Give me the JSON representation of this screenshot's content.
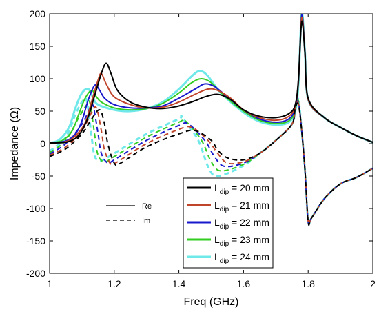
{
  "chart_data": {
    "type": "line",
    "xlabel": "Freq (GHz)",
    "ylabel": "Impedance (Ω)",
    "xlim": [
      1,
      2
    ],
    "ylim": [
      -200,
      200
    ],
    "xticks": [
      "1",
      "1.2",
      "1.4",
      "1.6",
      "1.8",
      "2"
    ],
    "yticks": [
      "200",
      "150",
      "100",
      "50",
      "0",
      "-50",
      "-100",
      "-150",
      "-200"
    ],
    "grid": false,
    "legend_position": "bottom-right",
    "style_legend": [
      {
        "label": "Re",
        "style": "solid"
      },
      {
        "label": "Im",
        "style": "dashed"
      }
    ],
    "series": [
      {
        "label_main": "L",
        "label_sub": "dip",
        "label_rest": " = 20 mm",
        "color": "#000000",
        "re": [
          [
            1.0,
            1
          ],
          [
            1.05,
            2
          ],
          [
            1.08,
            8
          ],
          [
            1.1,
            20
          ],
          [
            1.12,
            42
          ],
          [
            1.14,
            75
          ],
          [
            1.16,
            108
          ],
          [
            1.175,
            124
          ],
          [
            1.19,
            108
          ],
          [
            1.21,
            82
          ],
          [
            1.25,
            64
          ],
          [
            1.3,
            56
          ],
          [
            1.35,
            54
          ],
          [
            1.4,
            58
          ],
          [
            1.45,
            66
          ],
          [
            1.48,
            72
          ],
          [
            1.52,
            76
          ],
          [
            1.56,
            68
          ],
          [
            1.6,
            52
          ],
          [
            1.65,
            42
          ],
          [
            1.7,
            40
          ],
          [
            1.74,
            46
          ],
          [
            1.76,
            60
          ],
          [
            1.77,
            100
          ],
          [
            1.78,
            188
          ],
          [
            1.79,
            140
          ],
          [
            1.8,
            70
          ],
          [
            1.85,
            40
          ],
          [
            1.9,
            25
          ],
          [
            1.95,
            12
          ],
          [
            2.0,
            2
          ]
        ],
        "im": [
          [
            1.0,
            -20
          ],
          [
            1.05,
            -8
          ],
          [
            1.1,
            15
          ],
          [
            1.13,
            38
          ],
          [
            1.155,
            52
          ],
          [
            1.17,
            30
          ],
          [
            1.18,
            0
          ],
          [
            1.2,
            -30
          ],
          [
            1.22,
            -30
          ],
          [
            1.3,
            -5
          ],
          [
            1.4,
            15
          ],
          [
            1.45,
            20
          ],
          [
            1.5,
            5
          ],
          [
            1.52,
            -10
          ],
          [
            1.55,
            -22
          ],
          [
            1.6,
            -25
          ],
          [
            1.65,
            -15
          ],
          [
            1.7,
            5
          ],
          [
            1.75,
            30
          ],
          [
            1.76,
            55
          ],
          [
            1.77,
            60
          ],
          [
            1.78,
            20
          ],
          [
            1.79,
            -40
          ],
          [
            1.8,
            -120
          ],
          [
            1.81,
            -115
          ],
          [
            1.85,
            -85
          ],
          [
            1.9,
            -62
          ],
          [
            1.95,
            -52
          ],
          [
            2.0,
            -38
          ]
        ]
      },
      {
        "label_main": "L",
        "label_sub": "dip",
        "label_rest": " = 21 mm",
        "color": "#c0442a",
        "re": [
          [
            1.0,
            1
          ],
          [
            1.05,
            3
          ],
          [
            1.08,
            12
          ],
          [
            1.11,
            32
          ],
          [
            1.13,
            65
          ],
          [
            1.15,
            98
          ],
          [
            1.16,
            108
          ],
          [
            1.175,
            92
          ],
          [
            1.2,
            72
          ],
          [
            1.25,
            60
          ],
          [
            1.3,
            55
          ],
          [
            1.35,
            56
          ],
          [
            1.4,
            64
          ],
          [
            1.45,
            76
          ],
          [
            1.49,
            84
          ],
          [
            1.52,
            82
          ],
          [
            1.56,
            70
          ],
          [
            1.6,
            52
          ],
          [
            1.65,
            40
          ],
          [
            1.7,
            36
          ],
          [
            1.74,
            42
          ],
          [
            1.76,
            58
          ],
          [
            1.77,
            98
          ],
          [
            1.78,
            194
          ],
          [
            1.79,
            140
          ],
          [
            1.8,
            68
          ],
          [
            1.85,
            40
          ],
          [
            1.9,
            25
          ],
          [
            1.95,
            12
          ],
          [
            2.0,
            2
          ]
        ],
        "im": [
          [
            1.0,
            -18
          ],
          [
            1.05,
            -5
          ],
          [
            1.1,
            20
          ],
          [
            1.13,
            48
          ],
          [
            1.145,
            55
          ],
          [
            1.16,
            20
          ],
          [
            1.17,
            -10
          ],
          [
            1.19,
            -32
          ],
          [
            1.21,
            -28
          ],
          [
            1.3,
            0
          ],
          [
            1.4,
            22
          ],
          [
            1.44,
            25
          ],
          [
            1.49,
            5
          ],
          [
            1.52,
            -15
          ],
          [
            1.55,
            -30
          ],
          [
            1.6,
            -28
          ],
          [
            1.65,
            -15
          ],
          [
            1.7,
            5
          ],
          [
            1.75,
            30
          ],
          [
            1.76,
            55
          ],
          [
            1.77,
            62
          ],
          [
            1.78,
            20
          ],
          [
            1.79,
            -40
          ],
          [
            1.8,
            -120
          ],
          [
            1.81,
            -115
          ],
          [
            1.85,
            -85
          ],
          [
            1.9,
            -62
          ],
          [
            1.95,
            -52
          ],
          [
            2.0,
            -38
          ]
        ]
      },
      {
        "label_main": "L",
        "label_sub": "dip",
        "label_rest": " = 22 mm",
        "color": "#1818cc",
        "re": [
          [
            1.0,
            1
          ],
          [
            1.05,
            4
          ],
          [
            1.08,
            15
          ],
          [
            1.1,
            35
          ],
          [
            1.12,
            68
          ],
          [
            1.14,
            90
          ],
          [
            1.155,
            82
          ],
          [
            1.17,
            70
          ],
          [
            1.2,
            60
          ],
          [
            1.25,
            55
          ],
          [
            1.3,
            55
          ],
          [
            1.35,
            58
          ],
          [
            1.4,
            70
          ],
          [
            1.45,
            84
          ],
          [
            1.48,
            92
          ],
          [
            1.51,
            88
          ],
          [
            1.55,
            72
          ],
          [
            1.6,
            52
          ],
          [
            1.65,
            38
          ],
          [
            1.7,
            33
          ],
          [
            1.74,
            38
          ],
          [
            1.76,
            55
          ],
          [
            1.77,
            96
          ],
          [
            1.78,
            198
          ],
          [
            1.79,
            142
          ],
          [
            1.8,
            68
          ],
          [
            1.85,
            40
          ],
          [
            1.9,
            25
          ],
          [
            1.95,
            12
          ],
          [
            2.0,
            2
          ]
        ],
        "im": [
          [
            1.0,
            -16
          ],
          [
            1.05,
            0
          ],
          [
            1.1,
            30
          ],
          [
            1.125,
            55
          ],
          [
            1.135,
            58
          ],
          [
            1.15,
            15
          ],
          [
            1.16,
            -15
          ],
          [
            1.18,
            -30
          ],
          [
            1.2,
            -25
          ],
          [
            1.3,
            5
          ],
          [
            1.4,
            28
          ],
          [
            1.43,
            30
          ],
          [
            1.48,
            5
          ],
          [
            1.51,
            -20
          ],
          [
            1.54,
            -35
          ],
          [
            1.6,
            -30
          ],
          [
            1.65,
            -15
          ],
          [
            1.7,
            5
          ],
          [
            1.75,
            30
          ],
          [
            1.76,
            55
          ],
          [
            1.77,
            64
          ],
          [
            1.78,
            20
          ],
          [
            1.79,
            -40
          ],
          [
            1.8,
            -120
          ],
          [
            1.81,
            -115
          ],
          [
            1.85,
            -85
          ],
          [
            1.9,
            -62
          ],
          [
            1.95,
            -52
          ],
          [
            2.0,
            -38
          ]
        ]
      },
      {
        "label_main": "L",
        "label_sub": "dip",
        "label_rest": " = 23 mm",
        "color": "#33cc22",
        "re": [
          [
            1.0,
            1
          ],
          [
            1.04,
            5
          ],
          [
            1.07,
            20
          ],
          [
            1.09,
            45
          ],
          [
            1.11,
            70
          ],
          [
            1.13,
            82
          ],
          [
            1.145,
            72
          ],
          [
            1.16,
            64
          ],
          [
            1.2,
            55
          ],
          [
            1.25,
            52
          ],
          [
            1.3,
            54
          ],
          [
            1.35,
            62
          ],
          [
            1.4,
            78
          ],
          [
            1.44,
            94
          ],
          [
            1.47,
            100
          ],
          [
            1.5,
            94
          ],
          [
            1.54,
            74
          ],
          [
            1.6,
            50
          ],
          [
            1.65,
            36
          ],
          [
            1.7,
            31
          ],
          [
            1.74,
            35
          ],
          [
            1.76,
            52
          ],
          [
            1.77,
            94
          ],
          [
            1.78,
            200
          ],
          [
            1.79,
            142
          ],
          [
            1.8,
            68
          ],
          [
            1.85,
            40
          ],
          [
            1.9,
            25
          ],
          [
            1.95,
            12
          ],
          [
            2.0,
            2
          ]
        ],
        "im": [
          [
            1.0,
            -14
          ],
          [
            1.05,
            5
          ],
          [
            1.09,
            40
          ],
          [
            1.115,
            60
          ],
          [
            1.125,
            62
          ],
          [
            1.14,
            12
          ],
          [
            1.15,
            -18
          ],
          [
            1.17,
            -28
          ],
          [
            1.2,
            -20
          ],
          [
            1.3,
            10
          ],
          [
            1.4,
            33
          ],
          [
            1.42,
            35
          ],
          [
            1.47,
            5
          ],
          [
            1.5,
            -28
          ],
          [
            1.53,
            -42
          ],
          [
            1.6,
            -32
          ],
          [
            1.65,
            -15
          ],
          [
            1.7,
            5
          ],
          [
            1.75,
            30
          ],
          [
            1.76,
            55
          ],
          [
            1.77,
            66
          ],
          [
            1.78,
            20
          ],
          [
            1.79,
            -40
          ],
          [
            1.8,
            -120
          ],
          [
            1.81,
            -115
          ],
          [
            1.85,
            -85
          ],
          [
            1.9,
            -62
          ],
          [
            1.95,
            -52
          ],
          [
            2.0,
            -38
          ]
        ]
      },
      {
        "label_main": "L",
        "label_sub": "dip",
        "label_rest": " = 24 mm",
        "color": "#6fe8ea",
        "re": [
          [
            1.0,
            1
          ],
          [
            1.03,
            6
          ],
          [
            1.06,
            25
          ],
          [
            1.08,
            55
          ],
          [
            1.1,
            78
          ],
          [
            1.12,
            84
          ],
          [
            1.135,
            70
          ],
          [
            1.15,
            60
          ],
          [
            1.2,
            52
          ],
          [
            1.25,
            50
          ],
          [
            1.3,
            54
          ],
          [
            1.35,
            64
          ],
          [
            1.4,
            84
          ],
          [
            1.44,
            104
          ],
          [
            1.465,
            112
          ],
          [
            1.49,
            104
          ],
          [
            1.53,
            78
          ],
          [
            1.6,
            48
          ],
          [
            1.65,
            34
          ],
          [
            1.7,
            29
          ],
          [
            1.74,
            33
          ],
          [
            1.76,
            50
          ],
          [
            1.77,
            92
          ],
          [
            1.78,
            200
          ],
          [
            1.79,
            142
          ],
          [
            1.8,
            68
          ],
          [
            1.85,
            40
          ],
          [
            1.9,
            25
          ],
          [
            1.95,
            12
          ],
          [
            2.0,
            2
          ]
        ],
        "im": [
          [
            1.0,
            -12
          ],
          [
            1.05,
            10
          ],
          [
            1.08,
            45
          ],
          [
            1.1,
            64
          ],
          [
            1.115,
            66
          ],
          [
            1.13,
            10
          ],
          [
            1.14,
            -20
          ],
          [
            1.16,
            -26
          ],
          [
            1.2,
            -15
          ],
          [
            1.3,
            15
          ],
          [
            1.4,
            38
          ],
          [
            1.41,
            40
          ],
          [
            1.46,
            5
          ],
          [
            1.49,
            -35
          ],
          [
            1.52,
            -50
          ],
          [
            1.6,
            -34
          ],
          [
            1.65,
            -15
          ],
          [
            1.7,
            5
          ],
          [
            1.75,
            30
          ],
          [
            1.76,
            55
          ],
          [
            1.77,
            68
          ],
          [
            1.78,
            20
          ],
          [
            1.79,
            -40
          ],
          [
            1.8,
            -120
          ],
          [
            1.81,
            -115
          ],
          [
            1.85,
            -85
          ],
          [
            1.9,
            -62
          ],
          [
            1.95,
            -52
          ],
          [
            2.0,
            -38
          ]
        ]
      }
    ]
  }
}
